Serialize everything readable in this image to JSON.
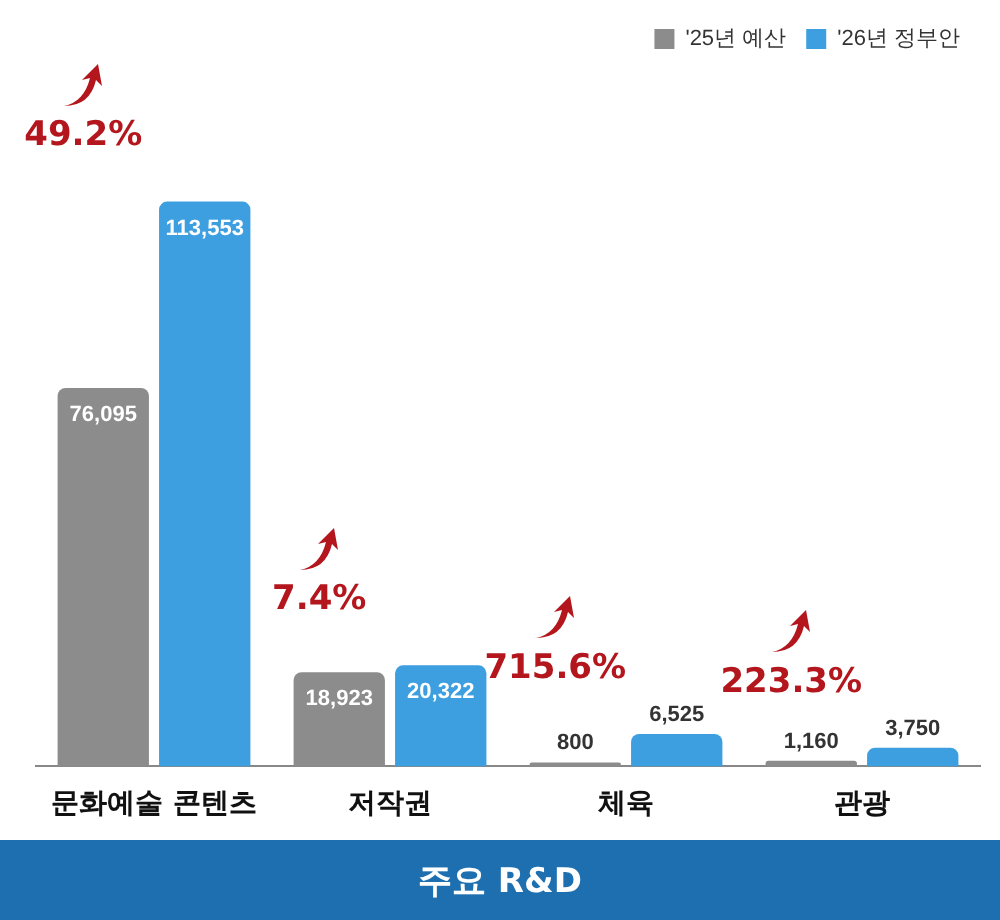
{
  "chart_data": {
    "type": "bar",
    "title": "주요 R&D",
    "categories": [
      "문화예술 콘텐츠",
      "저작권",
      "체육",
      "관광"
    ],
    "series": [
      {
        "name": "'25년 예산",
        "color": "#8c8c8c",
        "values": [
          76095,
          18923,
          800,
          1160
        ],
        "value_labels": [
          "76,095",
          "18,923",
          "800",
          "1,160"
        ]
      },
      {
        "name": "'26년 정부안",
        "color": "#3d9fe0",
        "values": [
          113553,
          20322,
          6525,
          3750
        ],
        "value_labels": [
          "113,553",
          "20,322",
          "6,525",
          "3,750"
        ]
      }
    ],
    "relative": false,
    "legend": "top right",
    "grid": false,
    "annotations": [
      "49.2%",
      "7.4%",
      "715.6%",
      "223.3%"
    ]
  }
}
